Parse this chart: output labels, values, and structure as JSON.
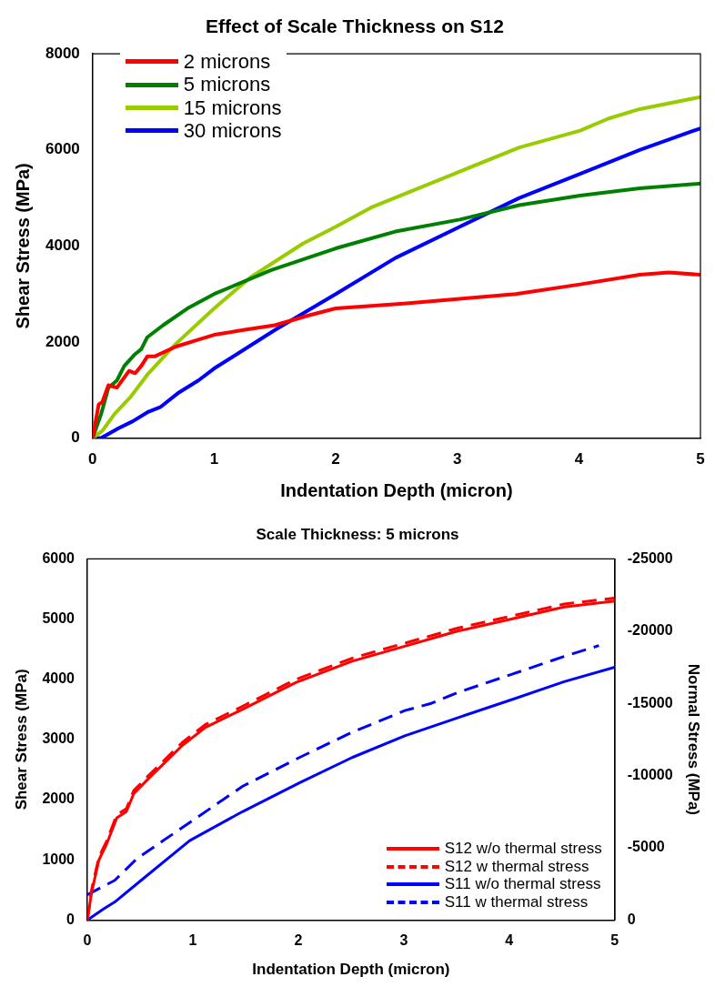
{
  "chart_data": [
    {
      "type": "line",
      "title": "Effect of Scale Thickness on S12",
      "xlabel": "Indentation Depth (micron)",
      "ylabel": "Shear Stress (MPa)",
      "xlim": [
        0,
        5
      ],
      "xticks": [
        0,
        1,
        2,
        3,
        4,
        5
      ],
      "ylim": [
        0,
        8000
      ],
      "yticks": [
        0,
        2000,
        4000,
        6000,
        8000
      ],
      "grid": false,
      "legend": "top left",
      "marker": "none",
      "line_style": "solid",
      "series": [
        {
          "name": "2 microns",
          "color": "#ff0000",
          "x": [
            0,
            0.05,
            0.08,
            0.13,
            0.2,
            0.3,
            0.35,
            0.4,
            0.45,
            0.51,
            0.68,
            0.87,
            1.0,
            1.24,
            1.5,
            1.77,
            2.0,
            2.56,
            3.02,
            3.48,
            4.01,
            4.5,
            4.74,
            5
          ],
          "values": [
            0,
            700,
            750,
            1100,
            1050,
            1400,
            1350,
            1500,
            1700,
            1700,
            1900,
            2050,
            2150,
            2250,
            2350,
            2550,
            2700,
            2800,
            2900,
            3000,
            3200,
            3400,
            3450,
            3400
          ]
        },
        {
          "name": "5 microns",
          "color": "#008000",
          "x": [
            0,
            0.07,
            0.13,
            0.2,
            0.26,
            0.35,
            0.4,
            0.45,
            0.58,
            0.78,
            1.0,
            1.47,
            2.0,
            2.49,
            3.02,
            3.51,
            4.01,
            4.5,
            5
          ],
          "values": [
            0,
            500,
            1050,
            1200,
            1500,
            1750,
            1850,
            2100,
            2350,
            2700,
            3000,
            3500,
            3950,
            4300,
            4550,
            4850,
            5050,
            5200,
            5300
          ]
        },
        {
          "name": "15 microns",
          "color": "#99cc00",
          "x": [
            0,
            0.08,
            0.18,
            0.31,
            0.46,
            0.68,
            1.0,
            1.3,
            1.73,
            2.0,
            2.29,
            3.02,
            3.51,
            4.01,
            4.24,
            4.5,
            5
          ],
          "values": [
            0,
            150,
            500,
            850,
            1350,
            1950,
            2700,
            3350,
            4050,
            4400,
            4800,
            5550,
            6050,
            6400,
            6650,
            6850,
            7100
          ]
        },
        {
          "name": "30 microns",
          "color": "#0000ff",
          "x": [
            0,
            0.07,
            0.21,
            0.33,
            0.46,
            0.56,
            0.71,
            0.87,
            1.0,
            1.5,
            2.0,
            2.49,
            3.02,
            3.51,
            4.01,
            4.5,
            5
          ],
          "values": [
            0,
            0,
            200,
            350,
            550,
            650,
            950,
            1200,
            1450,
            2250,
            3000,
            3750,
            4400,
            5000,
            5500,
            6000,
            6450
          ]
        }
      ]
    },
    {
      "type": "line",
      "title": "Scale Thickness: 5 microns",
      "xlabel": "Indentation Depth (micron)",
      "ylabel": "Shear Stress (MPa)",
      "y2label": "Normal Stress (MPa)",
      "xlim": [
        0,
        5
      ],
      "xticks": [
        0,
        1,
        2,
        3,
        4,
        5
      ],
      "ylim": [
        0,
        6000
      ],
      "yticks": [
        0,
        1000,
        2000,
        3000,
        4000,
        5000,
        6000
      ],
      "y2lim": [
        0,
        -25000
      ],
      "y2ticks": [
        0,
        -5000,
        -10000,
        -15000,
        -20000,
        -25000
      ],
      "grid": false,
      "legend": "bottom right",
      "marker": "none",
      "series": [
        {
          "name": "S12 w/o thermal stress",
          "color": "#ff0000",
          "line_style": "solid",
          "x": [
            0,
            0.04,
            0.11,
            0.18,
            0.28,
            0.37,
            0.44,
            0.58,
            0.9,
            1.12,
            1.47,
            1.98,
            2.51,
            3.01,
            3.51,
            4.02,
            4.52,
            5
          ],
          "values": [
            0,
            450,
            1000,
            1250,
            1700,
            1800,
            2100,
            2350,
            2900,
            3200,
            3500,
            3950,
            4300,
            4550,
            4800,
            5000,
            5200,
            5300
          ]
        },
        {
          "name": "S12 w thermal stress",
          "color": "#ff0000",
          "line_style": "dashed",
          "x": [
            0,
            0.04,
            0.11,
            0.18,
            0.28,
            0.37,
            0.44,
            0.58,
            0.9,
            1.12,
            1.47,
            1.98,
            2.51,
            3.01,
            3.51,
            4.02,
            4.52,
            5
          ],
          "values": [
            0,
            500,
            1050,
            1300,
            1750,
            1850,
            2150,
            2400,
            2950,
            3250,
            3550,
            4000,
            4350,
            4600,
            4850,
            5050,
            5250,
            5350
          ]
        },
        {
          "name": "S11 w/o thermal stress",
          "color": "#0000ff",
          "line_style": "solid",
          "axis": "y2",
          "x": [
            0,
            0.15,
            0.26,
            0.51,
            0.97,
            1.47,
            2.01,
            2.51,
            3.01,
            3.51,
            4.02,
            4.52,
            5
          ],
          "values": [
            0,
            -750,
            -1250,
            -2750,
            -5500,
            -7500,
            -9500,
            -11250,
            -12750,
            -14000,
            -15250,
            -16500,
            -17500
          ]
        },
        {
          "name": "S11 w thermal stress",
          "color": "#0000ff",
          "line_style": "dashed",
          "axis": "y2",
          "x": [
            0,
            0.26,
            0.47,
            0.72,
            0.97,
            1.47,
            2.01,
            2.51,
            3.01,
            3.26,
            3.51,
            4.02,
            4.52,
            4.85
          ],
          "values": [
            -1750,
            -2750,
            -4250,
            -5500,
            -6750,
            -9250,
            -11250,
            -13000,
            -14500,
            -15000,
            -15750,
            -17000,
            -18250,
            -19000
          ]
        }
      ]
    }
  ]
}
